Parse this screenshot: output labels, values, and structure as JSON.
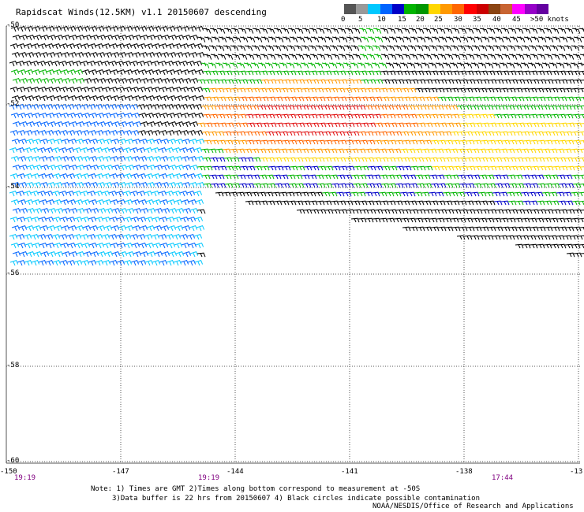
{
  "title": "Rapidscat Winds(12.5KM) v1.1 20150607 descending",
  "legend": {
    "labels": [
      "0",
      "5",
      "10",
      "15",
      "20",
      "25",
      "30",
      "35",
      "40",
      "45",
      ">50 knots"
    ],
    "colors": [
      "#555555",
      "#999999",
      "#00c8ff",
      "#0064ff",
      "#0000c8",
      "#00b400",
      "#009600",
      "#ffd700",
      "#ff9900",
      "#ff6600",
      "#ff0000",
      "#cc0000",
      "#8b4513",
      "#c86432",
      "#ff00ff",
      "#9600c8",
      "#6400a0"
    ]
  },
  "axes": {
    "lat_labels": [
      "-50",
      "-52",
      "-54",
      "-56",
      "-58",
      "-60"
    ],
    "lon_labels": [
      "-150",
      "-147",
      "-144",
      "-141",
      "-138",
      "-13"
    ]
  },
  "time_labels": [
    "19:19",
    "19:19",
    "17:44"
  ],
  "notes": {
    "line1": "Note: 1) Times are GMT 2)Times along bottom correspond to measurement at -50S",
    "line2": "3)Data buffer is 22 hrs from 20150607 4) Black circles indicate possible contamination"
  },
  "credit": "NOAA/NESDIS/Office of Research and Applications",
  "colors": {
    "grid": "#555555",
    "time_label": "#800080"
  }
}
